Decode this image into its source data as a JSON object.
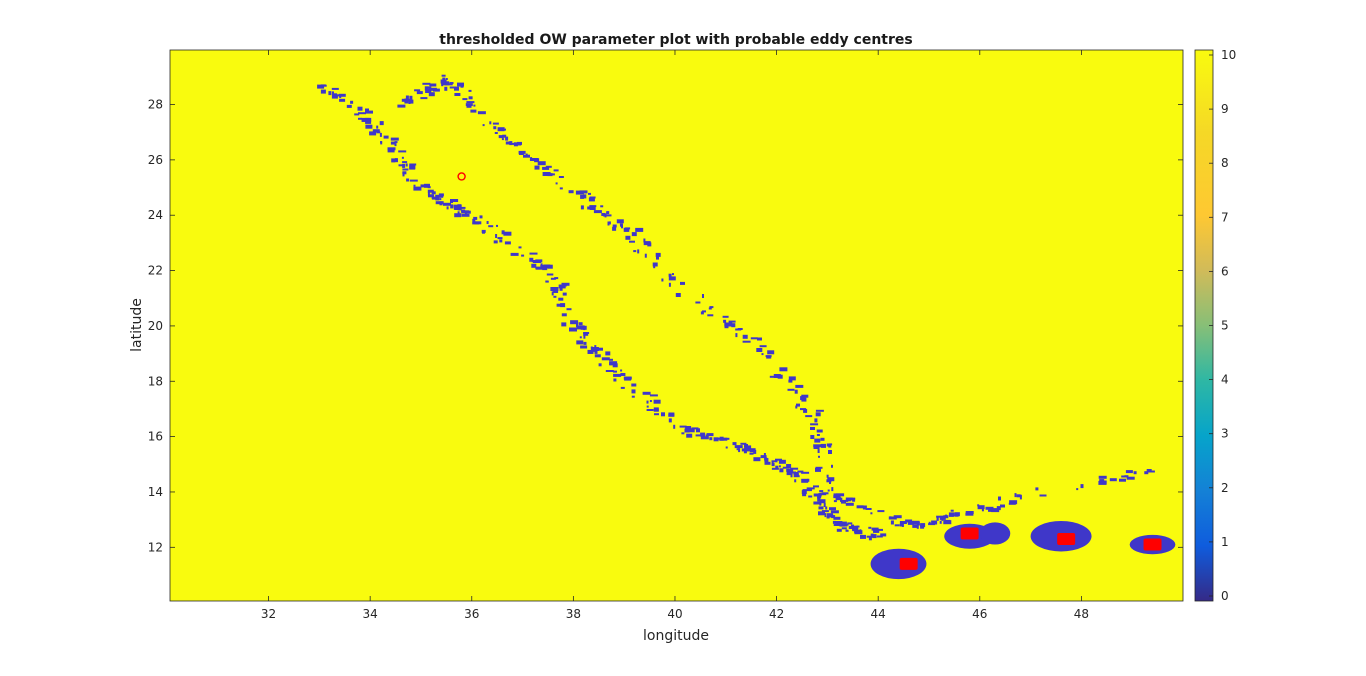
{
  "chart_data": {
    "type": "heatmap",
    "title": "thresholded OW parameter plot with probable eddy centres",
    "xlabel": "longitude",
    "ylabel": "latitude",
    "xlim": [
      30,
      50
    ],
    "ylim": [
      10,
      30
    ],
    "xticks": [
      32,
      34,
      36,
      38,
      40,
      42,
      44,
      46,
      48
    ],
    "yticks": [
      12,
      14,
      16,
      18,
      20,
      22,
      24,
      26,
      28
    ],
    "colorbar": {
      "range": [
        0,
        10
      ],
      "ticks": [
        0,
        1,
        2,
        3,
        4,
        5,
        6,
        7,
        8,
        9,
        10
      ],
      "colormap": "parula"
    },
    "background_value": 10,
    "background_color": "#f9fb0e",
    "region_value": 0,
    "region_color": "#3f37c9",
    "eddy_region_blobs": [
      {
        "lon": 44.4,
        "lat": 11.4,
        "rlon": 0.55,
        "rlat": 0.55
      },
      {
        "lon": 45.8,
        "lat": 12.4,
        "rlon": 0.5,
        "rlat": 0.45
      },
      {
        "lon": 46.3,
        "lat": 12.5,
        "rlon": 0.3,
        "rlat": 0.4
      },
      {
        "lon": 47.6,
        "lat": 12.4,
        "rlon": 0.6,
        "rlat": 0.55
      },
      {
        "lon": 49.4,
        "lat": 12.1,
        "rlon": 0.45,
        "rlat": 0.35
      }
    ],
    "eddy_centres": [
      {
        "lon": 44.6,
        "lat": 11.4,
        "marker": "filled-square",
        "color": "#ff0000"
      },
      {
        "lon": 45.8,
        "lat": 12.5,
        "marker": "filled-square",
        "color": "#ff0000"
      },
      {
        "lon": 47.7,
        "lat": 12.3,
        "marker": "filled-square",
        "color": "#ff0000"
      },
      {
        "lon": 49.4,
        "lat": 12.1,
        "marker": "filled-square",
        "color": "#ff0000"
      },
      {
        "lon": 35.8,
        "lat": 25.4,
        "marker": "open-circle",
        "color": "#ff0000"
      }
    ],
    "coastline_west": [
      [
        33.0,
        28.8
      ],
      [
        34.0,
        27.5
      ],
      [
        35.0,
        25.0
      ],
      [
        36.0,
        24.0
      ],
      [
        37.5,
        22.0
      ],
      [
        38.0,
        20.0
      ],
      [
        39.0,
        18.0
      ],
      [
        40.0,
        16.5
      ],
      [
        41.5,
        15.5
      ],
      [
        42.5,
        14.5
      ],
      [
        43.2,
        12.8
      ],
      [
        44.0,
        12.5
      ]
    ],
    "coastline_east": [
      [
        34.5,
        28.0
      ],
      [
        35.5,
        29.0
      ],
      [
        36.5,
        27.0
      ],
      [
        37.5,
        25.5
      ],
      [
        39.0,
        23.5
      ],
      [
        40.0,
        21.5
      ],
      [
        41.5,
        19.5
      ],
      [
        42.8,
        16.5
      ],
      [
        43.0,
        14.0
      ],
      [
        44.5,
        12.8
      ],
      [
        45.5,
        13.2
      ],
      [
        47.0,
        14.0
      ],
      [
        49.5,
        14.8
      ]
    ]
  }
}
